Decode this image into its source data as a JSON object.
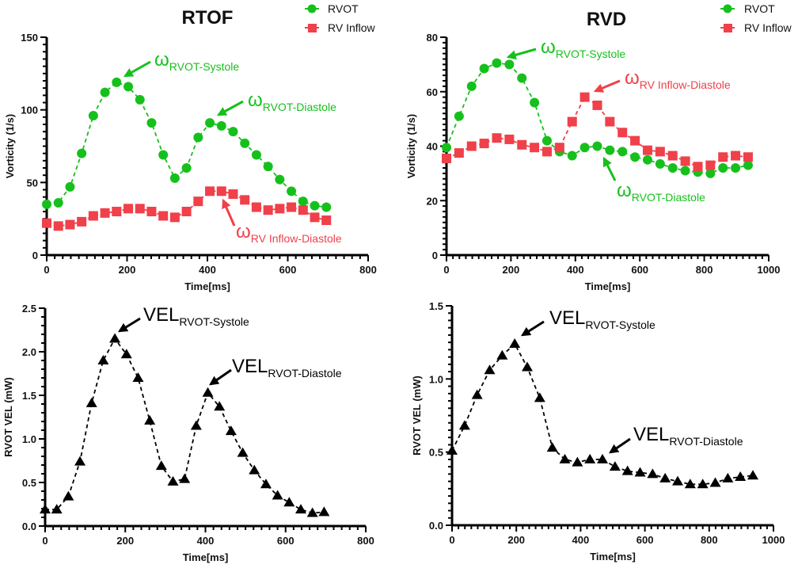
{
  "colors": {
    "rvot": "#16c01c",
    "rv_inflow": "#f0404a",
    "vel": "#000000",
    "axis": "#000000"
  },
  "chart_data": [
    {
      "id": "rtof-vorticity",
      "type": "line",
      "title": "RTOF",
      "xlabel": "Time[ms]",
      "ylabel": "Vorticity (1/s)",
      "xlim": [
        0,
        800
      ],
      "ylim": [
        0,
        150
      ],
      "xticks": [
        0,
        200,
        400,
        600,
        800
      ],
      "yticks": [
        0,
        50,
        100,
        150
      ],
      "grid": false,
      "legend": {
        "position": "top-right",
        "entries": [
          "RVOT",
          "RV Inflow"
        ]
      },
      "series": [
        {
          "name": "RVOT",
          "color": "#16c01c",
          "marker": "circle",
          "x": [
            0,
            29,
            58,
            87,
            116,
            145,
            174,
            203,
            232,
            261,
            290,
            319,
            348,
            377,
            406,
            435,
            464,
            493,
            522,
            551,
            580,
            609,
            638,
            667,
            696
          ],
          "y": [
            35,
            36,
            47,
            70,
            96,
            112,
            119,
            116,
            107,
            91,
            69,
            53,
            60,
            81,
            91,
            89,
            85,
            77,
            69,
            61,
            52,
            44,
            37,
            34,
            33
          ]
        },
        {
          "name": "RV Inflow",
          "color": "#f0404a",
          "marker": "square",
          "x": [
            0,
            29,
            58,
            87,
            116,
            145,
            174,
            203,
            232,
            261,
            290,
            319,
            348,
            377,
            406,
            435,
            464,
            493,
            522,
            551,
            580,
            609,
            638,
            667,
            696
          ],
          "y": [
            22,
            20,
            21,
            23,
            27,
            29,
            30,
            32,
            32,
            30,
            27,
            26,
            30,
            37,
            44,
            44,
            42,
            38,
            33,
            31,
            32,
            33,
            31,
            26,
            24
          ]
        }
      ],
      "annotations": [
        {
          "main": "ω",
          "sub": "RVOT-Systole",
          "color": "#16c01c"
        },
        {
          "main": "ω",
          "sub": "RVOT-Diastole",
          "color": "#16c01c"
        },
        {
          "main": "ω",
          "sub": "RV Inflow-Diastole",
          "color": "#f0404a"
        }
      ]
    },
    {
      "id": "rvd-vorticity",
      "type": "line",
      "title": "RVD",
      "xlabel": "Time[ms]",
      "ylabel": "Vorticity (1/s)",
      "xlim": [
        0,
        1000
      ],
      "ylim": [
        0,
        80
      ],
      "xticks": [
        0,
        200,
        400,
        600,
        800,
        1000
      ],
      "yticks": [
        0,
        20,
        40,
        60,
        80
      ],
      "grid": false,
      "legend": {
        "position": "top-right",
        "entries": [
          "RVOT",
          "RV Inflow"
        ]
      },
      "series": [
        {
          "name": "RVOT",
          "color": "#16c01c",
          "marker": "circle",
          "x": [
            0,
            39,
            78,
            117,
            156,
            195,
            234,
            273,
            312,
            351,
            390,
            429,
            468,
            507,
            546,
            585,
            624,
            663,
            702,
            741,
            780,
            819,
            858,
            897,
            936
          ],
          "y": [
            39.5,
            51,
            62,
            68.5,
            70.5,
            70,
            65,
            56,
            42,
            38,
            36.5,
            39.5,
            40,
            38.5,
            38,
            36,
            35,
            33.5,
            32,
            31,
            30.5,
            30,
            32,
            32,
            33
          ]
        },
        {
          "name": "RV Inflow",
          "color": "#f0404a",
          "marker": "square",
          "x": [
            0,
            39,
            78,
            117,
            156,
            195,
            234,
            273,
            312,
            351,
            390,
            429,
            468,
            507,
            546,
            585,
            624,
            663,
            702,
            741,
            780,
            819,
            858,
            897,
            936
          ],
          "y": [
            35.5,
            37.5,
            40,
            41,
            43,
            42.5,
            40.5,
            39.5,
            38,
            39.5,
            49,
            58,
            55,
            49,
            45,
            42,
            38.5,
            38,
            36.5,
            34.5,
            32.5,
            33,
            36,
            36.5,
            36
          ]
        }
      ],
      "annotations": [
        {
          "main": "ω",
          "sub": "RVOT-Systole",
          "color": "#16c01c"
        },
        {
          "main": "ω",
          "sub": "RV Inflow-Diastole",
          "color": "#f0404a"
        },
        {
          "main": "ω",
          "sub": "RVOT-Diastole",
          "color": "#16c01c"
        }
      ]
    },
    {
      "id": "rtof-vel",
      "type": "line",
      "title": "",
      "xlabel": "Time[ms]",
      "ylabel": "RVOT VEL  (mW)",
      "xlim": [
        0,
        800
      ],
      "ylim": [
        0,
        2.5
      ],
      "xticks": [
        0,
        200,
        400,
        600,
        800
      ],
      "yticks": [
        0.0,
        0.5,
        1.0,
        1.5,
        2.0,
        2.5
      ],
      "grid": false,
      "series": [
        {
          "name": "RVOT VEL",
          "color": "#000000",
          "marker": "triangle",
          "x": [
            0,
            29,
            58,
            87,
            116,
            145,
            174,
            203,
            232,
            261,
            290,
            319,
            348,
            377,
            406,
            435,
            464,
            493,
            522,
            551,
            580,
            609,
            638,
            667,
            696
          ],
          "y": [
            0.19,
            0.19,
            0.34,
            0.74,
            1.41,
            1.9,
            2.15,
            1.97,
            1.7,
            1.21,
            0.69,
            0.51,
            0.54,
            1.15,
            1.53,
            1.37,
            1.09,
            0.84,
            0.64,
            0.48,
            0.35,
            0.27,
            0.19,
            0.15,
            0.16
          ]
        }
      ],
      "annotations": [
        {
          "main": "VEL",
          "sub": "RVOT-Systole",
          "color": "#000000"
        },
        {
          "main": "VEL",
          "sub": "RVOT-Diastole",
          "color": "#000000"
        }
      ]
    },
    {
      "id": "rvd-vel",
      "type": "line",
      "title": "",
      "xlabel": "Time[ms]",
      "ylabel": "RVOT VEL  (mW)",
      "xlim": [
        0,
        1000
      ],
      "ylim": [
        0,
        1.5
      ],
      "xticks": [
        0,
        200,
        400,
        600,
        800,
        1000
      ],
      "yticks": [
        0.0,
        0.5,
        1.0,
        1.5
      ],
      "grid": false,
      "series": [
        {
          "name": "RVOT VEL",
          "color": "#000000",
          "marker": "triangle",
          "x": [
            0,
            39,
            78,
            117,
            156,
            195,
            234,
            273,
            312,
            351,
            390,
            429,
            468,
            507,
            546,
            585,
            624,
            663,
            702,
            741,
            780,
            819,
            858,
            897,
            936
          ],
          "y": [
            0.51,
            0.68,
            0.89,
            1.06,
            1.16,
            1.24,
            1.08,
            0.87,
            0.53,
            0.45,
            0.43,
            0.45,
            0.45,
            0.4,
            0.37,
            0.36,
            0.35,
            0.32,
            0.3,
            0.28,
            0.28,
            0.29,
            0.32,
            0.33,
            0.34
          ]
        }
      ],
      "annotations": [
        {
          "main": "VEL",
          "sub": "RVOT-Systole",
          "color": "#000000"
        },
        {
          "main": "VEL",
          "sub": "RVOT-Diastole",
          "color": "#000000"
        }
      ]
    }
  ]
}
